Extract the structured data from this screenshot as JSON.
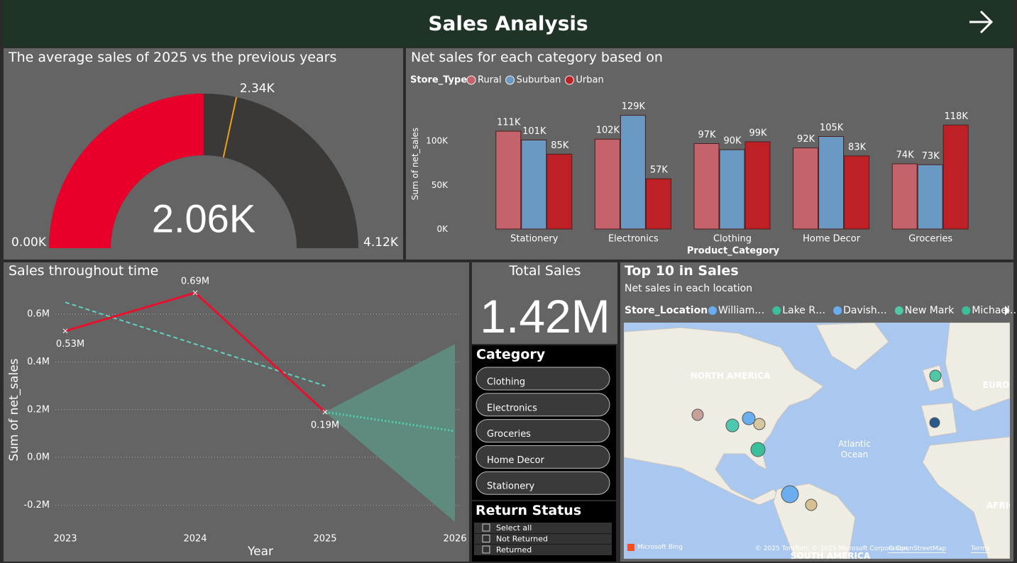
{
  "header": {
    "title": "Sales Analysis"
  },
  "chart_data": [
    {
      "type": "gauge",
      "title": "The average sales of 2025 vs the previous years",
      "value": 2.06,
      "value_label": "2.06K",
      "min": {
        "value": 0,
        "label": "0.00K"
      },
      "max": {
        "value": 4.12,
        "label": "4.12K"
      },
      "target": {
        "value": 2.34,
        "label": "2.34K"
      },
      "color": "#e8002a",
      "track_color": "#3a3938",
      "target_color": "#e8a317"
    },
    {
      "type": "bar",
      "title": "Net sales for each category based on",
      "legend_title": "Store_Type",
      "y_label": "Sum of net_sales",
      "x_label": "Product_Category",
      "categories": [
        "Stationery",
        "Electronics",
        "Clothing",
        "Home Decor",
        "Groceries"
      ],
      "series": [
        {
          "name": "Rural",
          "color": "#c4636b",
          "values": [
            111000,
            102000,
            97000,
            92000,
            74000
          ],
          "value_labels": [
            "111K",
            "102K",
            "97K",
            "92K",
            "74K"
          ]
        },
        {
          "name": "Suburban",
          "color": "#6a9ac4",
          "values": [
            101000,
            129000,
            90000,
            105000,
            73000
          ],
          "value_labels": [
            "101K",
            "129K",
            "90K",
            "105K",
            "73K"
          ]
        },
        {
          "name": "Urban",
          "color": "#bf2026",
          "values": [
            85000,
            57000,
            99000,
            83000,
            118000
          ],
          "value_labels": [
            "85K",
            "57K",
            "99K",
            "83K",
            "118K"
          ]
        }
      ],
      "ylim": [
        0,
        140000
      ],
      "yticks": [
        {
          "value": 0,
          "label": "0K"
        },
        {
          "value": 50000,
          "label": "50K"
        },
        {
          "value": 100000,
          "label": "100K"
        }
      ]
    },
    {
      "type": "line",
      "title": "Sales throughout time",
      "y_label": "Sum of net_sales",
      "x_label": "Year",
      "x": [
        2023,
        2024,
        2025
      ],
      "values": [
        0.53,
        0.69,
        0.19
      ],
      "value_labels": [
        "0.53M",
        "0.69M",
        "0.19M"
      ],
      "color": "#e8112d",
      "trend": {
        "x": [
          2023,
          2025
        ],
        "values": [
          0.65,
          0.3
        ],
        "color": "#5fd3c0"
      },
      "forecast": {
        "x": [
          2025,
          2026
        ],
        "values": [
          0.19,
          0.11
        ],
        "upper": [
          0.19,
          0.475
        ],
        "lower": [
          0.19,
          -0.27
        ],
        "color": "#4fd1b4",
        "band_color": "#5e8f82"
      },
      "xlim": [
        2023,
        2026
      ],
      "xticks": [
        2023,
        2024,
        2025,
        2026
      ],
      "ylim": [
        -0.3,
        0.75
      ],
      "yticks": [
        {
          "value": -0.2,
          "label": "-0.2M"
        },
        {
          "value": 0,
          "label": "0.0M"
        },
        {
          "value": 0.2,
          "label": "0.2M"
        },
        {
          "value": 0.4,
          "label": "0.4M"
        },
        {
          "value": 0.6,
          "label": "0.6M"
        }
      ],
      "grid": true
    }
  ],
  "card": {
    "title": "Total Sales",
    "value": "1.42M"
  },
  "category_slicer": {
    "title": "Category",
    "items": [
      "Clothing",
      "Electronics",
      "Groceries",
      "Home Decor",
      "Stationery"
    ]
  },
  "return_slicer": {
    "title": "Return Status",
    "items": [
      "Select all",
      "Not Returned",
      "Returned"
    ]
  },
  "map": {
    "title": "Top 10 in Sales",
    "subtitle": "Net sales in each location",
    "legend_title": "Store_Location",
    "legend": [
      {
        "name": "William…",
        "color": "#6aaef0"
      },
      {
        "name": "Lake R…",
        "color": "#3bbf9a"
      },
      {
        "name": "Davish…",
        "color": "#6aaef0"
      },
      {
        "name": "New Mark",
        "color": "#4fc8a8"
      },
      {
        "name": "Michael…",
        "color": "#3bbf9a"
      }
    ],
    "labels": [
      "NORTH AMERICA",
      "EUROP",
      "AFRIC",
      "SOUTH AMERICA"
    ],
    "ocean": [
      "Atlantic",
      "Ocean"
    ],
    "brand": "Microsoft Bing",
    "attribution": "© 2025 TomTom, © 2025 Microsoft Corporation,",
    "osm": "© OpenStreetMap",
    "terms": "Terms"
  }
}
